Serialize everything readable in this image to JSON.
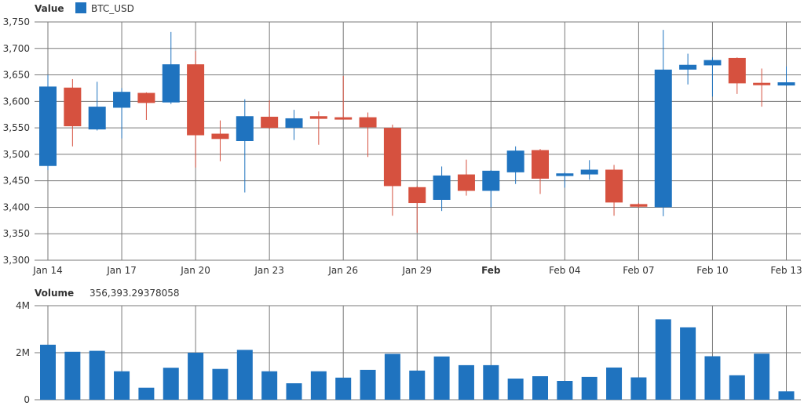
{
  "chart_data": [
    {
      "type": "candlestick",
      "panel_label": "Value",
      "legend": [
        {
          "name": "BTC_USD",
          "color": "#1f73bf"
        }
      ],
      "up_color": "#1f73bf",
      "down_color": "#d6513f",
      "ylim": [
        3300,
        3750
      ],
      "yticks": [
        3300,
        3350,
        3400,
        3450,
        3500,
        3550,
        3600,
        3650,
        3700,
        3750
      ],
      "ytick_labels": [
        "3,300",
        "3,350",
        "3,400",
        "3,450",
        "3,500",
        "3,550",
        "3,600",
        "3,650",
        "3,700",
        "3,750"
      ],
      "x_tick_labels": [
        {
          "label": "Jan 14",
          "index": 0,
          "bold": false
        },
        {
          "label": "Jan 17",
          "index": 3,
          "bold": false
        },
        {
          "label": "Jan 20",
          "index": 6,
          "bold": false
        },
        {
          "label": "Jan 23",
          "index": 9,
          "bold": false
        },
        {
          "label": "Jan 26",
          "index": 12,
          "bold": false
        },
        {
          "label": "Jan 29",
          "index": 15,
          "bold": false
        },
        {
          "label": "Feb",
          "index": 18,
          "bold": true
        },
        {
          "label": "Feb 04",
          "index": 21,
          "bold": false
        },
        {
          "label": "Feb 07",
          "index": 24,
          "bold": false
        },
        {
          "label": "Feb 10",
          "index": 27,
          "bold": false
        },
        {
          "label": "Feb 13",
          "index": 30,
          "bold": false
        }
      ],
      "candles": [
        {
          "open": 3478,
          "high": 3650,
          "low": 3470,
          "close": 3628
        },
        {
          "open": 3626,
          "high": 3642,
          "low": 3515,
          "close": 3553
        },
        {
          "open": 3547,
          "high": 3637,
          "low": 3545,
          "close": 3590
        },
        {
          "open": 3588,
          "high": 3625,
          "low": 3530,
          "close": 3618
        },
        {
          "open": 3616,
          "high": 3617,
          "low": 3565,
          "close": 3597
        },
        {
          "open": 3598,
          "high": 3731,
          "low": 3595,
          "close": 3670
        },
        {
          "open": 3670,
          "high": 3695,
          "low": 3475,
          "close": 3536
        },
        {
          "open": 3539,
          "high": 3564,
          "low": 3487,
          "close": 3529
        },
        {
          "open": 3525,
          "high": 3604,
          "low": 3428,
          "close": 3572
        },
        {
          "open": 3571,
          "high": 3602,
          "low": 3548,
          "close": 3550
        },
        {
          "open": 3550,
          "high": 3584,
          "low": 3527,
          "close": 3568
        },
        {
          "open": 3572,
          "high": 3581,
          "low": 3518,
          "close": 3567
        },
        {
          "open": 3570,
          "high": 3648,
          "low": 3567,
          "close": 3568
        },
        {
          "open": 3570,
          "high": 3579,
          "low": 3495,
          "close": 3551
        },
        {
          "open": 3550,
          "high": 3556,
          "low": 3384,
          "close": 3440
        },
        {
          "open": 3438,
          "high": 3440,
          "low": 3352,
          "close": 3408
        },
        {
          "open": 3414,
          "high": 3477,
          "low": 3393,
          "close": 3460
        },
        {
          "open": 3462,
          "high": 3490,
          "low": 3422,
          "close": 3431
        },
        {
          "open": 3431,
          "high": 3470,
          "low": 3400,
          "close": 3469
        },
        {
          "open": 3466,
          "high": 3515,
          "low": 3444,
          "close": 3507
        },
        {
          "open": 3508,
          "high": 3510,
          "low": 3425,
          "close": 3454
        },
        {
          "open": 3459,
          "high": 3466,
          "low": 3437,
          "close": 3464
        },
        {
          "open": 3462,
          "high": 3489,
          "low": 3452,
          "close": 3471
        },
        {
          "open": 3471,
          "high": 3480,
          "low": 3384,
          "close": 3409
        },
        {
          "open": 3406,
          "high": 3408,
          "low": 3399,
          "close": 3401
        },
        {
          "open": 3400,
          "high": 3735,
          "low": 3383,
          "close": 3660
        },
        {
          "open": 3660,
          "high": 3690,
          "low": 3632,
          "close": 3669
        },
        {
          "open": 3668,
          "high": 3683,
          "low": 3609,
          "close": 3678
        },
        {
          "open": 3682,
          "high": 3683,
          "low": 3614,
          "close": 3634
        },
        {
          "open": 3635,
          "high": 3662,
          "low": 3590,
          "close": 3632
        },
        {
          "open": 3630,
          "high": 3666,
          "low": 3629,
          "close": 3636
        }
      ]
    },
    {
      "type": "bar",
      "panel_label": "Volume",
      "value_readout": "356,393.29378058",
      "color": "#1f73bf",
      "ylim": [
        0,
        4000000
      ],
      "yticks": [
        0,
        2000000,
        4000000
      ],
      "ytick_labels": [
        "0",
        "2M",
        "4M"
      ],
      "values": [
        2340000,
        2040000,
        2080000,
        1210000,
        510000,
        1360000,
        2000000,
        1310000,
        2120000,
        1210000,
        700000,
        1210000,
        940000,
        1270000,
        1950000,
        1240000,
        1840000,
        1470000,
        1470000,
        900000,
        1000000,
        800000,
        970000,
        1370000,
        950000,
        3420000,
        3080000,
        1850000,
        1040000,
        1960000,
        356393
      ]
    }
  ]
}
